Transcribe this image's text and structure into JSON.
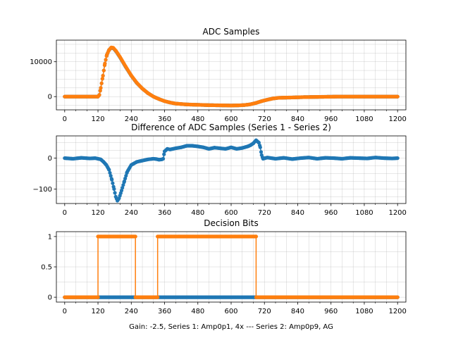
{
  "figure": {
    "xlabel": "Gain: -2.5, Series 1: Amp0p1, 4x --- Series 2: Amp0p9, AG"
  },
  "colors": {
    "series1": "#1f77b4",
    "series2": "#ff7f0e",
    "grid": "#b0b0b0"
  },
  "chart_data": [
    {
      "type": "scatter",
      "title": "ADC Samples",
      "xlim": [
        -30,
        1230
      ],
      "ylim": [
        -3800,
        16200
      ],
      "xticks": [
        0,
        120,
        240,
        360,
        480,
        600,
        720,
        840,
        960,
        1080,
        1200
      ],
      "yticks": [
        0,
        10000
      ],
      "xgrid_minor_step": 40,
      "yticks_grid": [
        -2500,
        0,
        2500,
        5000,
        7500,
        10000,
        12500,
        15000
      ],
      "grid": true,
      "series": [
        {
          "points": [
            [
              0,
              0
            ],
            [
              80,
              0
            ],
            [
              110,
              0
            ],
            [
              120,
              0
            ],
            [
              125,
              500
            ],
            [
              130,
              2500
            ],
            [
              138,
              6000
            ],
            [
              145,
              9500
            ],
            [
              152,
              12000
            ],
            [
              160,
              13400
            ],
            [
              168,
              14000
            ],
            [
              175,
              13900
            ],
            [
              185,
              13000
            ],
            [
              200,
              11200
            ],
            [
              220,
              8500
            ],
            [
              240,
              6000
            ],
            [
              260,
              3900
            ],
            [
              280,
              2300
            ],
            [
              300,
              1000
            ],
            [
              320,
              0
            ],
            [
              340,
              -700
            ],
            [
              360,
              -1300
            ],
            [
              380,
              -1700
            ],
            [
              400,
              -2000
            ],
            [
              440,
              -2250
            ],
            [
              480,
              -2350
            ],
            [
              520,
              -2450
            ],
            [
              560,
              -2500
            ],
            [
              600,
              -2550
            ],
            [
              630,
              -2500
            ],
            [
              650,
              -2400
            ],
            [
              670,
              -2200
            ],
            [
              690,
              -1800
            ],
            [
              710,
              -1300
            ],
            [
              730,
              -900
            ],
            [
              750,
              -550
            ],
            [
              770,
              -350
            ],
            [
              790,
              -300
            ],
            [
              820,
              -250
            ],
            [
              860,
              -150
            ],
            [
              900,
              -100
            ],
            [
              940,
              -50
            ],
            [
              980,
              0
            ],
            [
              1040,
              0
            ],
            [
              1100,
              0
            ],
            [
              1160,
              0
            ],
            [
              1200,
              0
            ]
          ]
        },
        {
          "points": [
            [
              0,
              0
            ],
            [
              80,
              0
            ],
            [
              110,
              0
            ],
            [
              120,
              0
            ],
            [
              125,
              500
            ],
            [
              130,
              2500
            ],
            [
              138,
              6000
            ],
            [
              145,
              9500
            ],
            [
              152,
              12000
            ],
            [
              160,
              13400
            ],
            [
              168,
              14100
            ],
            [
              175,
              14000
            ],
            [
              185,
              13100
            ],
            [
              200,
              11300
            ],
            [
              220,
              8600
            ],
            [
              240,
              6050
            ],
            [
              260,
              3950
            ],
            [
              280,
              2300
            ],
            [
              300,
              1000
            ],
            [
              320,
              0
            ],
            [
              340,
              -700
            ],
            [
              360,
              -1300
            ],
            [
              380,
              -1700
            ],
            [
              400,
              -2000
            ],
            [
              440,
              -2250
            ],
            [
              480,
              -2350
            ],
            [
              520,
              -2450
            ],
            [
              560,
              -2500
            ],
            [
              600,
              -2550
            ],
            [
              630,
              -2500
            ],
            [
              650,
              -2400
            ],
            [
              670,
              -2200
            ],
            [
              690,
              -1800
            ],
            [
              710,
              -1300
            ],
            [
              730,
              -900
            ],
            [
              750,
              -550
            ],
            [
              770,
              -350
            ],
            [
              790,
              -300
            ],
            [
              820,
              -250
            ],
            [
              860,
              -150
            ],
            [
              900,
              -100
            ],
            [
              940,
              -50
            ],
            [
              980,
              0
            ],
            [
              1040,
              0
            ],
            [
              1100,
              0
            ],
            [
              1160,
              0
            ],
            [
              1200,
              0
            ]
          ]
        }
      ]
    },
    {
      "type": "scatter",
      "title": "Difference of ADC Samples (Series 1 - Series 2)",
      "xlim": [
        -30,
        1230
      ],
      "ylim": [
        -147,
        72
      ],
      "xticks": [
        0,
        120,
        240,
        360,
        480,
        600,
        720,
        840,
        960,
        1080,
        1200
      ],
      "yticks": [
        -100,
        0
      ],
      "xgrid_minor_step": 40,
      "yticks_grid": [
        -125,
        -100,
        -75,
        -50,
        -25,
        0,
        25,
        50
      ],
      "grid": true,
      "series": [
        {
          "points": [
            [
              0,
              0
            ],
            [
              30,
              -2
            ],
            [
              60,
              1
            ],
            [
              90,
              -1
            ],
            [
              110,
              0
            ],
            [
              130,
              -4
            ],
            [
              140,
              -12
            ],
            [
              150,
              -22
            ],
            [
              160,
              -38
            ],
            [
              170,
              -70
            ],
            [
              178,
              -100
            ],
            [
              184,
              -125
            ],
            [
              190,
              -138
            ],
            [
              196,
              -130
            ],
            [
              205,
              -105
            ],
            [
              215,
              -75
            ],
            [
              225,
              -45
            ],
            [
              240,
              -22
            ],
            [
              260,
              -12
            ],
            [
              280,
              -8
            ],
            [
              300,
              -4
            ],
            [
              320,
              -2
            ],
            [
              330,
              -3
            ],
            [
              340,
              -5
            ],
            [
              350,
              -4
            ],
            [
              355,
              -2
            ],
            [
              360,
              22
            ],
            [
              370,
              30
            ],
            [
              380,
              28
            ],
            [
              400,
              32
            ],
            [
              420,
              35
            ],
            [
              440,
              40
            ],
            [
              460,
              40
            ],
            [
              480,
              38
            ],
            [
              500,
              35
            ],
            [
              520,
              30
            ],
            [
              540,
              34
            ],
            [
              560,
              32
            ],
            [
              580,
              30
            ],
            [
              600,
              35
            ],
            [
              620,
              30
            ],
            [
              640,
              33
            ],
            [
              660,
              38
            ],
            [
              670,
              42
            ],
            [
              680,
              48
            ],
            [
              690,
              58
            ],
            [
              700,
              50
            ],
            [
              705,
              35
            ],
            [
              710,
              10
            ],
            [
              715,
              -2
            ],
            [
              730,
              2
            ],
            [
              760,
              -2
            ],
            [
              790,
              1
            ],
            [
              820,
              -3
            ],
            [
              850,
              0
            ],
            [
              880,
              2
            ],
            [
              910,
              -2
            ],
            [
              940,
              1
            ],
            [
              970,
              0
            ],
            [
              1000,
              -2
            ],
            [
              1030,
              1
            ],
            [
              1060,
              0
            ],
            [
              1090,
              -1
            ],
            [
              1120,
              2
            ],
            [
              1150,
              0
            ],
            [
              1180,
              -1
            ],
            [
              1200,
              0
            ]
          ]
        }
      ]
    },
    {
      "type": "step",
      "title": "Decision Bits",
      "xlim": [
        -30,
        1230
      ],
      "ylim": [
        -0.08,
        1.08
      ],
      "xticks": [
        0,
        120,
        240,
        360,
        480,
        600,
        720,
        840,
        960,
        1080,
        1200
      ],
      "yticks": [
        0.0,
        0.5,
        1.0
      ],
      "xgrid_minor_step": 40,
      "yticks_grid": [
        0.0,
        0.25,
        0.5,
        0.75,
        1.0
      ],
      "grid": true,
      "series": [
        {
          "points": [
            [
              0,
              0
            ],
            [
              1200,
              0
            ]
          ]
        },
        {
          "points": [
            [
              0,
              0
            ],
            [
              120,
              0
            ],
            [
              120,
              1
            ],
            [
              255,
              1
            ],
            [
              255,
              0
            ],
            [
              335,
              0
            ],
            [
              335,
              1
            ],
            [
              690,
              1
            ],
            [
              690,
              0
            ],
            [
              1200,
              0
            ]
          ]
        }
      ]
    }
  ]
}
